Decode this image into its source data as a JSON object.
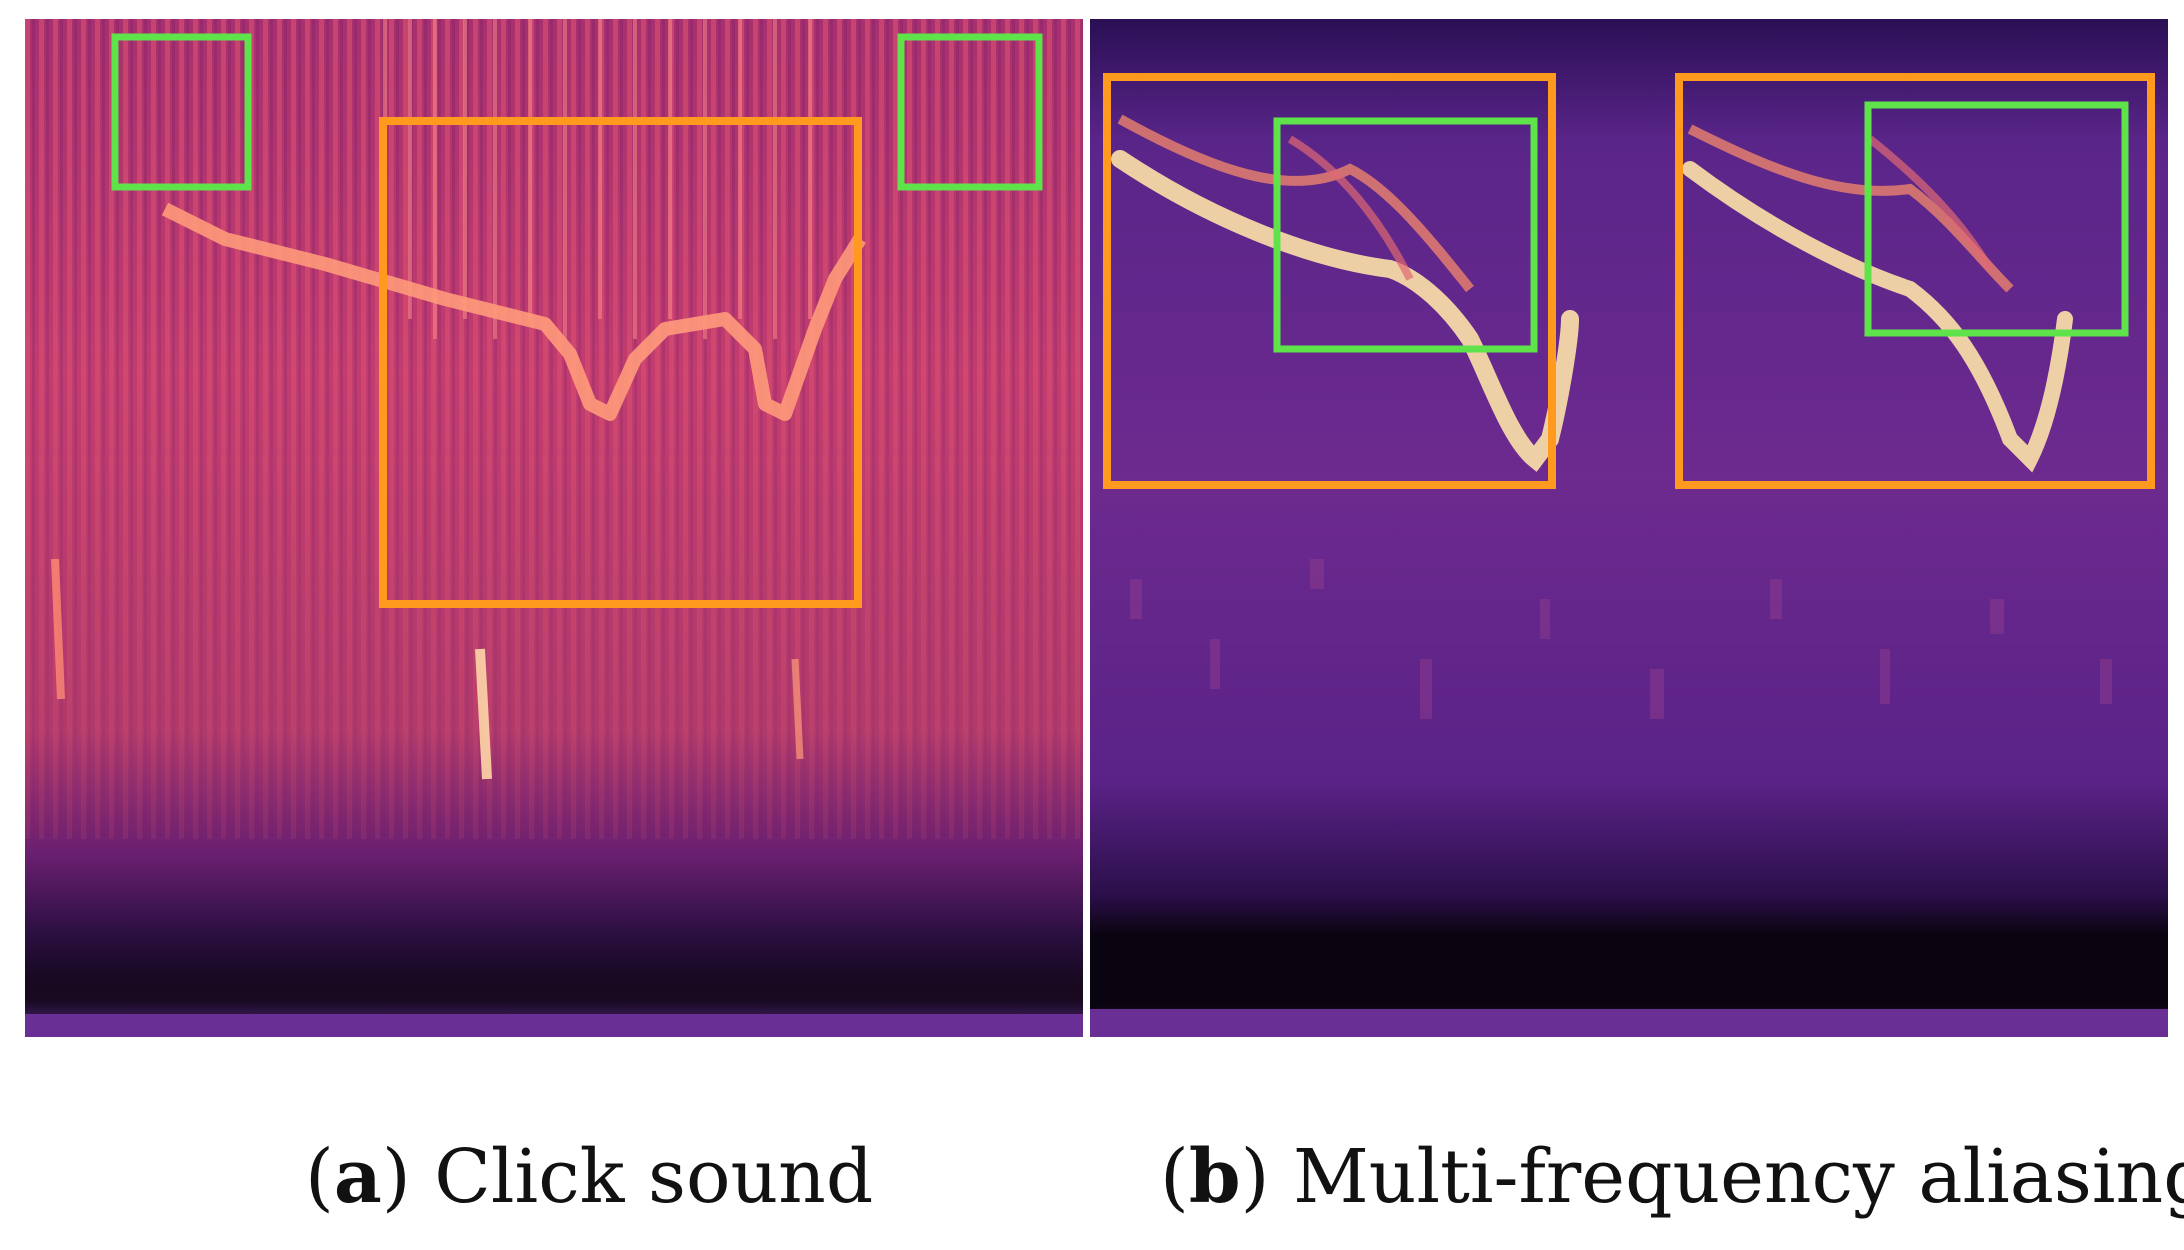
{
  "figure": {
    "panel_a": {
      "caption_label": "a",
      "caption_text": "Click sound",
      "box_colors": {
        "primary": "#ff9a1f",
        "secondary": "#5fe34a"
      }
    },
    "panel_b": {
      "caption_label": "b",
      "caption_text": "Multi-frequency aliasing",
      "box_colors": {
        "primary": "#ff9a1f",
        "secondary": "#5fe34a"
      }
    },
    "colormap": [
      "#000004",
      "#3b0f70",
      "#8c2981",
      "#de4968",
      "#fe9f6d",
      "#fcfdbf"
    ]
  }
}
